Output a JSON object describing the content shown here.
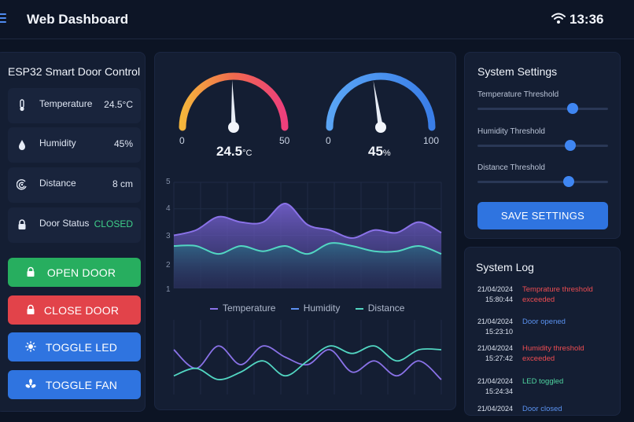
{
  "header": {
    "title": "Web Dashboard",
    "time": "13:36"
  },
  "control": {
    "title": "ESP32 Smart Door Control",
    "sensors": [
      {
        "label": "Temperature",
        "value": "24.5°C",
        "icon": "thermometer-icon"
      },
      {
        "label": "Humidity",
        "value": "45%",
        "icon": "droplet-icon"
      },
      {
        "label": "Distance",
        "value": "8 cm",
        "icon": "distance-icon"
      },
      {
        "label": "Door Status",
        "value": "CLOSED",
        "icon": "lock-icon"
      }
    ],
    "buttons": {
      "open": "OPEN DOOR",
      "close": "CLOSE DOOR",
      "led": "TOGGLE LED",
      "fan": "TOGGLE FAN"
    }
  },
  "gauges": {
    "temperature": {
      "value": 24.5,
      "min": 0,
      "max": 50,
      "value_text": "24.5",
      "unit": "°C",
      "min_label": "0",
      "max_label": "50"
    },
    "humidity": {
      "value": 45,
      "min": 0,
      "max": 100,
      "value_text": "45",
      "unit": "%",
      "min_label": "0",
      "max_label": "100"
    }
  },
  "chart_data": [
    {
      "type": "area",
      "y_ticks": [
        "5",
        "4",
        "3",
        "2",
        "1"
      ],
      "ylim": [
        1,
        5
      ],
      "grid": true,
      "legend": "bottom",
      "series": [
        {
          "name": "Temperature",
          "color": "#8a72e8",
          "values": [
            3.0,
            3.2,
            3.7,
            3.5,
            3.5,
            4.2,
            3.4,
            3.2,
            2.9,
            3.2,
            3.1,
            3.5,
            3.1
          ]
        },
        {
          "name": "Humidity",
          "color": "#5c8ff0",
          "values": []
        },
        {
          "name": "Distance",
          "color": "#52d6c2",
          "values": [
            2.6,
            2.6,
            2.3,
            2.6,
            2.4,
            2.6,
            2.3,
            2.7,
            2.6,
            2.4,
            2.4,
            2.6,
            2.3
          ]
        }
      ]
    },
    {
      "type": "line",
      "grid": true,
      "series": [
        {
          "color": "#8a72e8",
          "values": [
            3.2,
            2.7,
            3.3,
            2.8,
            3.3,
            3.0,
            2.8,
            3.2,
            2.6,
            2.9,
            2.5,
            2.9,
            2.4
          ]
        },
        {
          "color": "#52d6c2",
          "values": [
            2.5,
            2.7,
            2.4,
            2.6,
            2.9,
            2.5,
            2.9,
            3.3,
            3.1,
            3.3,
            2.9,
            3.2,
            3.2
          ]
        }
      ]
    }
  ],
  "settings": {
    "title": "System Settings",
    "sliders": [
      {
        "label": "Temperature Threshold",
        "value": 0.73
      },
      {
        "label": "Humidity Threshold",
        "value": 0.71
      },
      {
        "label": "Distance Threshold",
        "value": 0.7
      }
    ],
    "save_label": "SAVE SETTINGS"
  },
  "log": {
    "title": "System Log",
    "entries": [
      {
        "date": "21/04/2024",
        "time": "15:80:44",
        "message": "Temprature threshold exceeded",
        "level": "red"
      },
      {
        "date": "21/04/2024",
        "time": "15:23:10",
        "message": "Door opened",
        "level": "blue"
      },
      {
        "date": "21/04/2024",
        "time": "15:27:42",
        "message": "Humidity threshold exceeded",
        "level": "red"
      },
      {
        "date": "21/04/2024",
        "time": "15:24:34",
        "message": "LED toggled",
        "level": "green"
      },
      {
        "date": "21/04/2024",
        "time": "",
        "message": "Door closed",
        "level": "blue"
      }
    ]
  },
  "colors": {
    "accent": "#2f74e0",
    "success": "#27ae5f",
    "danger": "#e2434a",
    "background": "#0c1424",
    "panel": "#141e33"
  }
}
